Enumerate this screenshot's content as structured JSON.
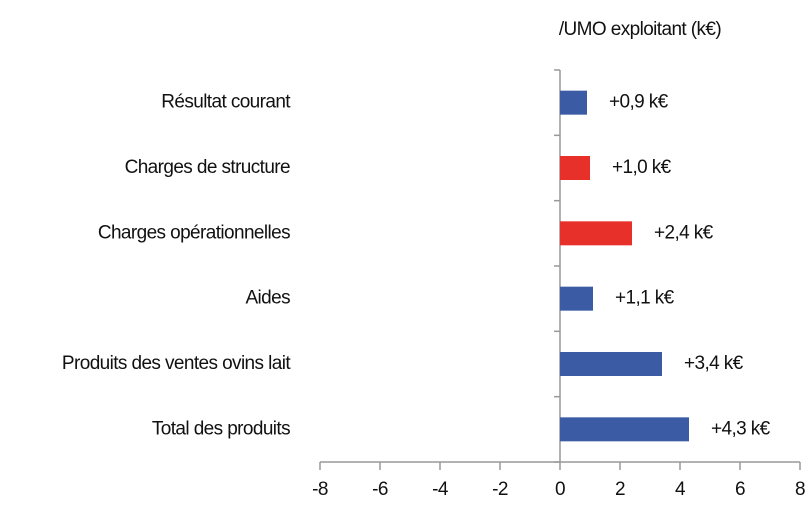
{
  "chart_data": {
    "type": "barh",
    "title": "/UMO exploitant (k€)",
    "categories": [
      "Résultat courant",
      "Charges de structure",
      "Charges opérationnelles",
      "Aides",
      "Produits des ventes ovins lait",
      "Total des produits"
    ],
    "values": [
      0.9,
      1.0,
      2.4,
      1.1,
      3.4,
      4.3
    ],
    "value_labels": [
      "+0,9 k€",
      "+1,0 k€",
      "+2,4 k€",
      "+1,1 k€",
      "+3,4 k€",
      "+4,3 k€"
    ],
    "colors": [
      "#3b5ba5",
      "#e8302a",
      "#e8302a",
      "#3b5ba5",
      "#3b5ba5",
      "#3b5ba5"
    ],
    "xlim": [
      -8,
      8
    ],
    "xticks": [
      -8,
      -6,
      -4,
      -2,
      0,
      2,
      4,
      6,
      8
    ]
  }
}
